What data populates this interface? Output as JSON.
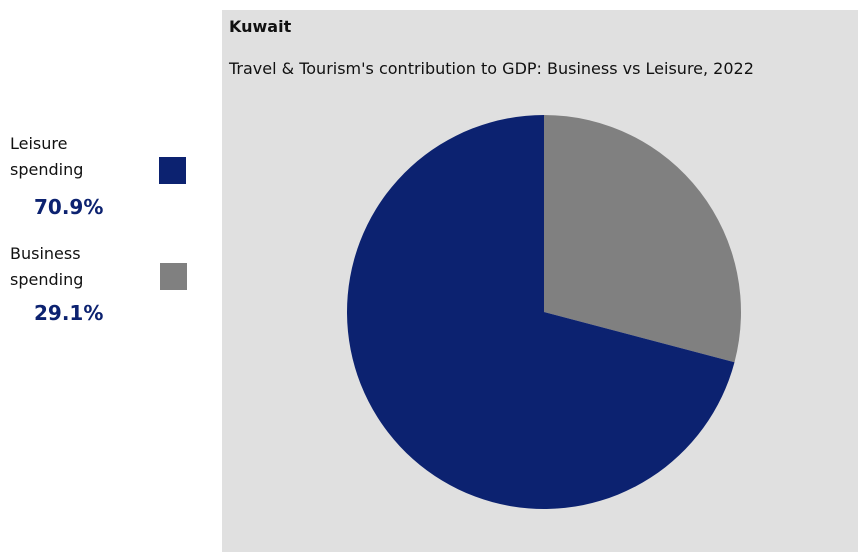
{
  "chart_data": {
    "type": "pie",
    "title": "Kuwait",
    "subtitle": "Travel & Tourism's contribution to GDP: Business vs Leisure, 2022",
    "slices": [
      {
        "label": "Leisure spending",
        "value": 70.9,
        "display": "70.9%",
        "color": "#0c2270"
      },
      {
        "label": "Business spending",
        "value": 29.1,
        "display": "29.1%",
        "color": "#808080"
      }
    ],
    "legend_position": "left"
  }
}
